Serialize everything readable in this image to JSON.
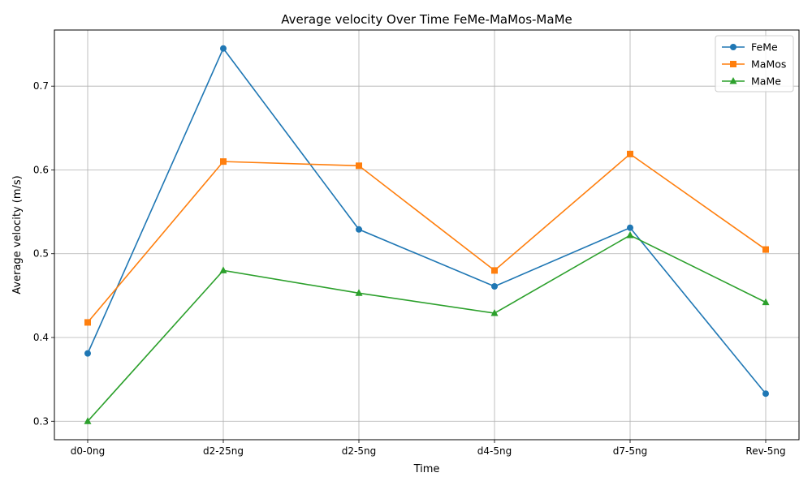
{
  "chart_data": {
    "type": "line",
    "title": "Average velocity Over Time FeMe-MaMos-MaMe",
    "xlabel": "Time",
    "ylabel": "Average velocity (m/s)",
    "categories": [
      "d0-0ng",
      "d2-25ng",
      "d2-5ng",
      "d4-5ng",
      "d7-5ng",
      "Rev-5ng"
    ],
    "ylim": [
      0.278,
      0.767
    ],
    "yticks": [
      0.3,
      0.4,
      0.5,
      0.6,
      0.7
    ],
    "grid": true,
    "legend_position": "top-right",
    "series": [
      {
        "name": "FeMe",
        "color": "#1f77b4",
        "marker": "circle",
        "values": [
          0.381,
          0.745,
          0.529,
          0.461,
          0.531,
          0.333
        ]
      },
      {
        "name": "MaMos",
        "color": "#ff7f0e",
        "marker": "square",
        "values": [
          0.418,
          0.61,
          0.605,
          0.48,
          0.619,
          0.505
        ]
      },
      {
        "name": "MaMe",
        "color": "#2ca02c",
        "marker": "triangle",
        "values": [
          0.3,
          0.48,
          0.453,
          0.429,
          0.522,
          0.442
        ]
      }
    ]
  }
}
